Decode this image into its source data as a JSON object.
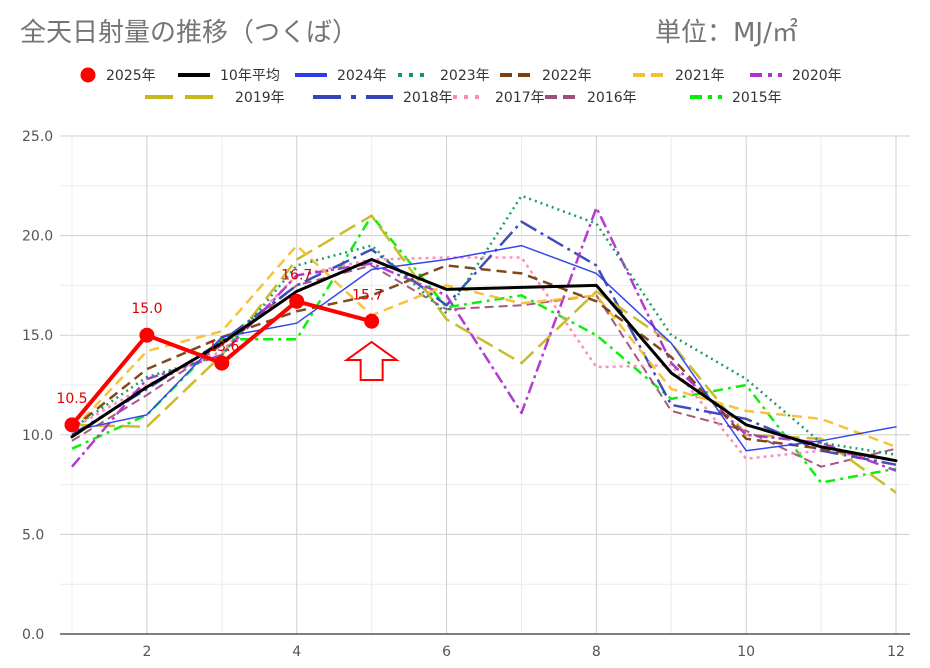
{
  "title": "全天日射量の推移（つくば）",
  "unit": "単位：MJ/㎡",
  "colors": {
    "y2025": "#ff0000",
    "avg": "#000000"
  },
  "chart_data": {
    "type": "line",
    "title": "全天日射量の推移（つくば）",
    "unit": "単位：MJ/㎡",
    "x_ticks": [
      "2",
      "4",
      "6",
      "8",
      "10",
      "12"
    ],
    "y_ticks": [
      "0.0",
      "5.0",
      "10.0",
      "15.0",
      "20.0",
      "25.0"
    ],
    "xlim": [
      1,
      12
    ],
    "ylim": [
      0,
      25
    ],
    "grid": true,
    "legend_position": "top",
    "series": [
      {
        "name": "2015年",
        "color": "#00ee00",
        "dash": "10,5,3,5",
        "width": 2.5,
        "x": [
          1,
          2,
          3,
          4,
          5,
          6,
          7,
          8,
          9,
          10,
          11,
          12
        ],
        "values": [
          9.3,
          11.0,
          14.8,
          14.8,
          21.0,
          16.4,
          17.0,
          15.0,
          11.8,
          12.5,
          7.6,
          8.3
        ]
      },
      {
        "name": "2016年",
        "color": "#a0507a",
        "dash": "9,5",
        "width": 2,
        "x": [
          1,
          2,
          3,
          4,
          5,
          6,
          7,
          8,
          9,
          10,
          11,
          12
        ],
        "values": [
          9.7,
          12.0,
          14.5,
          17.5,
          18.5,
          16.3,
          16.5,
          17.0,
          11.2,
          10.2,
          8.4,
          9.3
        ]
      },
      {
        "name": "2017年",
        "color": "#ff88b8",
        "dash": "3,4",
        "width": 2.5,
        "x": [
          1,
          2,
          3,
          4,
          5,
          6,
          7,
          8,
          9,
          10,
          11,
          12
        ],
        "values": [
          10.3,
          12.5,
          14.2,
          18.0,
          18.8,
          18.9,
          18.9,
          13.4,
          13.5,
          8.8,
          9.2,
          8.7
        ]
      },
      {
        "name": "2018年",
        "color": "#3545b8",
        "dash": "18,5,3,5",
        "width": 2.5,
        "x": [
          1,
          2,
          3,
          4,
          5,
          6,
          7,
          8,
          9,
          10,
          11,
          12
        ],
        "values": [
          10.0,
          12.3,
          14.7,
          17.5,
          19.3,
          16.5,
          20.7,
          18.5,
          11.5,
          10.8,
          9.2,
          8.5
        ]
      },
      {
        "name": "2019年",
        "color": "#c8b820",
        "dash": "18,7",
        "width": 2.5,
        "x": [
          1,
          2,
          3,
          4,
          5,
          6,
          7,
          8,
          9,
          10,
          11,
          12
        ],
        "values": [
          10.5,
          10.4,
          14.0,
          18.8,
          21.0,
          15.8,
          13.6,
          17.2,
          14.6,
          10.0,
          9.8,
          7.1
        ]
      },
      {
        "name": "2020年",
        "color": "#b030d0",
        "dash": "12,4,3,4",
        "width": 2.5,
        "x": [
          1,
          2,
          3,
          4,
          5,
          6,
          7,
          8,
          9,
          10,
          11,
          12
        ],
        "values": [
          8.4,
          12.8,
          14.0,
          18.0,
          18.6,
          17.0,
          11.1,
          21.4,
          13.6,
          10.0,
          9.6,
          8.2
        ]
      },
      {
        "name": "2021年",
        "color": "#f5c030",
        "dash": "10,6",
        "width": 2.5,
        "x": [
          1,
          2,
          3,
          4,
          5,
          6,
          7,
          8,
          9,
          10,
          11,
          12
        ],
        "values": [
          10.2,
          14.2,
          15.2,
          19.5,
          16.0,
          17.5,
          16.6,
          17.0,
          12.3,
          11.2,
          10.8,
          9.4
        ]
      },
      {
        "name": "2022年",
        "color": "#7a4010",
        "dash": "10,6",
        "width": 2.5,
        "x": [
          1,
          2,
          3,
          4,
          5,
          6,
          7,
          8,
          9,
          10,
          11,
          12
        ],
        "values": [
          10.3,
          13.3,
          14.9,
          16.2,
          17.0,
          18.5,
          18.1,
          16.7,
          13.9,
          9.8,
          9.3,
          8.7
        ]
      },
      {
        "name": "2023年",
        "color": "#109860",
        "dash": "2,4",
        "width": 2.5,
        "x": [
          1,
          2,
          3,
          4,
          5,
          6,
          7,
          8,
          9,
          10,
          11,
          12
        ],
        "values": [
          10.3,
          12.9,
          14.0,
          18.5,
          19.5,
          16.1,
          22.0,
          20.6,
          15.0,
          12.8,
          9.6,
          9.0
        ]
      },
      {
        "name": "2024年",
        "color": "#2a3cf0",
        "dash": "",
        "width": 1.5,
        "x": [
          1,
          2,
          3,
          4,
          5,
          6,
          7,
          8,
          9,
          10,
          11,
          12
        ],
        "values": [
          10.2,
          11.0,
          14.9,
          15.6,
          18.3,
          18.8,
          19.5,
          18.1,
          14.6,
          9.2,
          9.7,
          10.4
        ]
      },
      {
        "name": "10年平均",
        "color": "#000000",
        "dash": "",
        "width": 3,
        "x": [
          1,
          2,
          3,
          4,
          5,
          6,
          7,
          8,
          9,
          10,
          11,
          12
        ],
        "values": [
          9.9,
          12.4,
          14.6,
          17.2,
          18.8,
          17.3,
          17.4,
          17.5,
          13.1,
          10.5,
          9.4,
          8.7
        ]
      },
      {
        "name": "2025年",
        "color": "#ff0000",
        "dash": "",
        "width": 4,
        "markers": true,
        "x": [
          1,
          2,
          3,
          4,
          5
        ],
        "values": [
          10.5,
          15.0,
          13.6,
          16.7,
          15.7
        ],
        "labels": [
          "10.5",
          "15.0",
          "13.6",
          "16.7",
          "15.7"
        ]
      }
    ],
    "legend": [
      {
        "name": "2025年",
        "color": "#ff0000",
        "style": "marker"
      },
      {
        "name": "10年平均",
        "color": "#000000",
        "style": "solid"
      },
      {
        "name": "2024年",
        "color": "#2a3cf0",
        "style": "solid"
      },
      {
        "name": "2023年",
        "color": "#109860",
        "style": "dotted"
      },
      {
        "name": "2022年",
        "color": "#7a4010",
        "style": "dashed"
      },
      {
        "name": "2021年",
        "color": "#f5c030",
        "style": "dashed"
      },
      {
        "name": "2020年",
        "color": "#b030d0",
        "style": "dashdot"
      },
      {
        "name": "2019年",
        "color": "#c8b820",
        "style": "longdash"
      },
      {
        "name": "2018年",
        "color": "#3545b8",
        "style": "longdashdot"
      },
      {
        "name": "2017年",
        "color": "#ff88b8",
        "style": "dotted"
      },
      {
        "name": "2016年",
        "color": "#a0507a",
        "style": "dashed"
      },
      {
        "name": "2015年",
        "color": "#00ee00",
        "style": "dashdot"
      }
    ],
    "annotation": {
      "type": "up-arrow",
      "color": "#ff0000",
      "x": 5
    }
  }
}
